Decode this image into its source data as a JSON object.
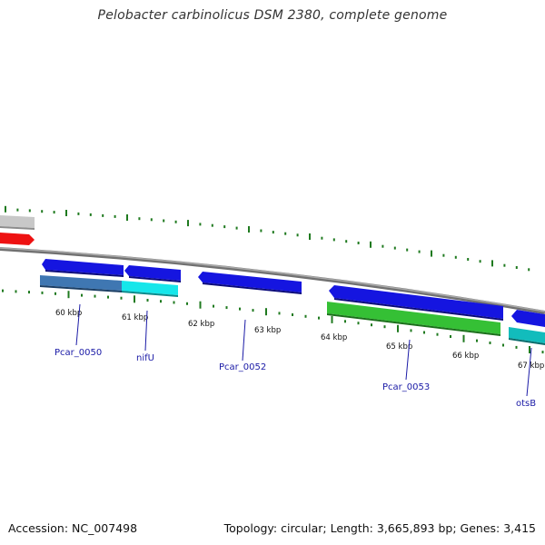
{
  "title": "Pelobacter carbinolicus DSM 2380, complete genome",
  "footer": {
    "accession": "Accession: NC_007498",
    "info": "Topology: circular; Length: 3,665,893 bp; Genes: 3,415"
  },
  "colors": {
    "backbone": "#808080",
    "tick": "#1f7a1f",
    "gene_forward": "#1515e0",
    "gene_reverse_cds": "#35c035",
    "gene_reverse_teal": "#12bcbc",
    "gene_reverse_cyan": "#16e6ea",
    "gene_reverse_steel": "#3f77b2",
    "gene_other_gray": "#c8c8c8",
    "gene_other_red": "#ee1111",
    "label": "#1a1aa6"
  },
  "kbp_labels": [
    "60 kbp",
    "61 kbp",
    "62 kbp",
    "63 kbp",
    "64 kbp",
    "65 kbp",
    "66 kbp",
    "67 kbp"
  ],
  "gene_labels": [
    "Pcar_0050",
    "nifU",
    "Pcar_0052",
    "Pcar_0053",
    "otsB"
  ]
}
